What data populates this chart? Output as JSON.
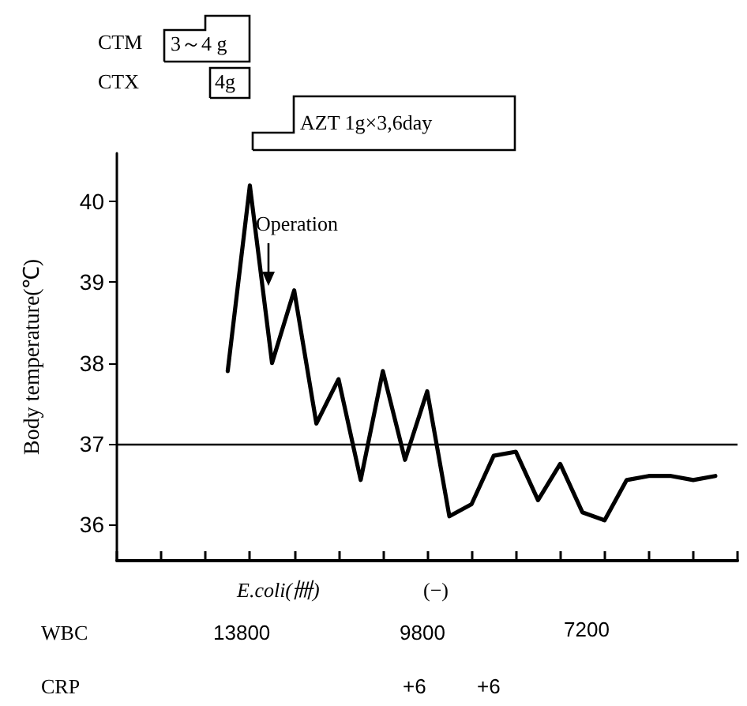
{
  "chart_data": {
    "type": "line",
    "ylabel": "Body temperature(℃)",
    "annotations": [
      "CTM",
      "3～4 g",
      "CTX",
      "4g",
      "AZT 1g×3,6day",
      "Operation",
      "E.coli(卌)",
      "(−)",
      "WBC",
      "13800",
      "9800",
      "7200",
      "CRP",
      "+6",
      "+6"
    ],
    "categories": [
      null,
      null,
      null,
      null,
      null,
      null,
      null,
      null,
      null,
      null,
      null,
      null,
      null,
      null,
      null,
      null,
      null,
      null,
      null,
      null,
      null,
      null,
      null,
      null,
      null,
      null,
      null,
      null,
      null
    ],
    "series": [
      {
        "color": "#000000",
        "values": [
          null,
          null,
          null,
          null,
          null,
          37.9,
          40.2,
          38.0,
          38.9,
          37.25,
          37.8,
          36.55,
          37.9,
          36.8,
          37.65,
          36.1,
          36.25,
          36.85,
          36.9,
          36.3,
          36.75,
          36.15,
          36.05,
          36.55,
          36.6,
          36.6,
          36.55,
          36.6,
          null
        ]
      }
    ],
    "ylim": [
      35.55,
      40.6
    ],
    "yticks": [
      36,
      37,
      38,
      39,
      40
    ],
    "ref_lines": [
      {
        "axis": "y",
        "value": 37,
        "color": "#000000"
      }
    ],
    "grid": false,
    "marker": "none",
    "line_style": "solid",
    "tick_labels": "y"
  }
}
